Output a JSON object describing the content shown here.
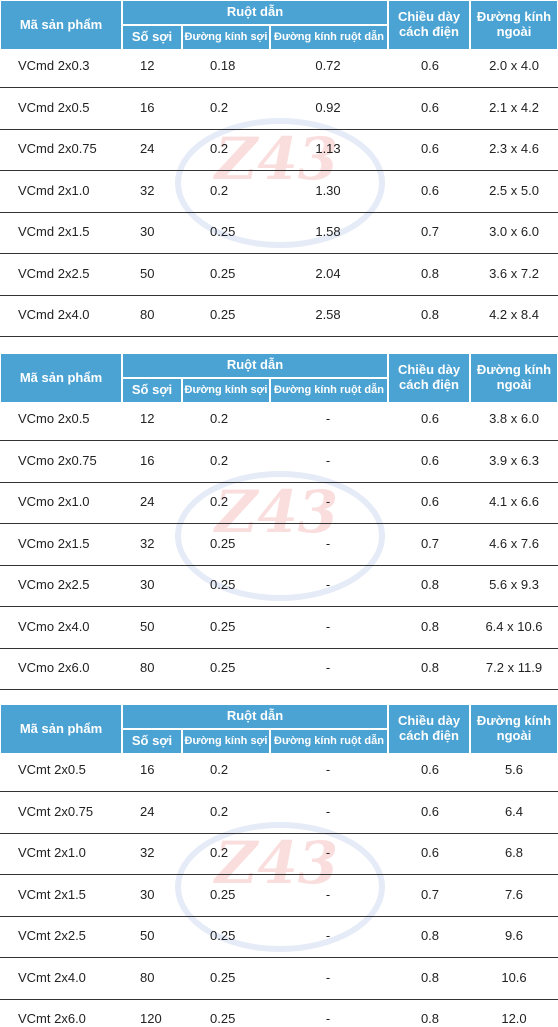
{
  "watermark": "Z43",
  "tables": [
    {
      "headers": [
        "Mã sản phẩm",
        "Ruột dẫn",
        "Số sợi",
        "Đường kính sợi",
        "Đường kính ruột dẫn",
        "Chiều dày cách điện",
        "Đường kính ngoài"
      ],
      "rows": [
        [
          "VCmd 2x0.3",
          "12",
          "0.18",
          "0.72",
          "0.6",
          "2.0 x 4.0"
        ],
        [
          "VCmd 2x0.5",
          "16",
          "0.2",
          "0.92",
          "0.6",
          "2.1 x 4.2"
        ],
        [
          "VCmd 2x0.75",
          "24",
          "0.2",
          "1.13",
          "0.6",
          "2.3 x 4.6"
        ],
        [
          "VCmd 2x1.0",
          "32",
          "0.2",
          "1.30",
          "0.6",
          "2.5 x 5.0"
        ],
        [
          "VCmd 2x1.5",
          "30",
          "0.25",
          "1.58",
          "0.7",
          "3.0 x 6.0"
        ],
        [
          "VCmd 2x2.5",
          "50",
          "0.25",
          "2.04",
          "0.8",
          "3.6 x 7.2"
        ],
        [
          "VCmd 2x4.0",
          "80",
          "0.25",
          "2.58",
          "0.8",
          "4.2 x 8.4"
        ]
      ]
    },
    {
      "headers": [
        "Mã sản phẩm",
        "Ruột dẫn",
        "Số sợi",
        "Đường kính sợi",
        "Đường kính ruột dẫn",
        "Chiều dày cách điện",
        "Đường kính ngoài"
      ],
      "rows": [
        [
          "VCmo 2x0.5",
          "12",
          "0.2",
          "-",
          "0.6",
          "3.8 x 6.0"
        ],
        [
          "VCmo 2x0.75",
          "16",
          "0.2",
          "-",
          "0.6",
          "3.9 x 6.3"
        ],
        [
          "VCmo 2x1.0",
          "24",
          "0.2",
          "-",
          "0.6",
          "4.1 x 6.6"
        ],
        [
          "VCmo 2x1.5",
          "32",
          "0.25",
          "-",
          "0.7",
          "4.6 x 7.6"
        ],
        [
          "VCmo 2x2.5",
          "30",
          "0.25",
          "-",
          "0.8",
          "5.6 x 9.3"
        ],
        [
          "VCmo 2x4.0",
          "50",
          "0.25",
          "-",
          "0.8",
          "6.4 x 10.6"
        ],
        [
          "VCmo 2x6.0",
          "80",
          "0.25",
          "-",
          "0.8",
          "7.2 x 11.9"
        ]
      ]
    },
    {
      "headers": [
        "Mã sản phẩm",
        "Ruột dẫn",
        "Số sợi",
        "Đường kính sợi",
        "Đường kính ruột dẫn",
        "Chiều dày cách điện",
        "Đường kính ngoài"
      ],
      "rows": [
        [
          "VCmt 2x0.5",
          "16",
          "0.2",
          "-",
          "0.6",
          "5.6"
        ],
        [
          "VCmt 2x0.75",
          "24",
          "0.2",
          "-",
          "0.6",
          "6.4"
        ],
        [
          "VCmt 2x1.0",
          "32",
          "0.2",
          "-",
          "0.6",
          "6.8"
        ],
        [
          "VCmt 2x1.5",
          "30",
          "0.25",
          "-",
          "0.7",
          "7.6"
        ],
        [
          "VCmt 2x2.5",
          "50",
          "0.25",
          "-",
          "0.8",
          "9.6"
        ],
        [
          "VCmt 2x4.0",
          "80",
          "0.25",
          "-",
          "0.8",
          "10.6"
        ],
        [
          "VCmt 2x6.0",
          "120",
          "0.25",
          "-",
          "0.8",
          "12.0"
        ]
      ]
    }
  ]
}
